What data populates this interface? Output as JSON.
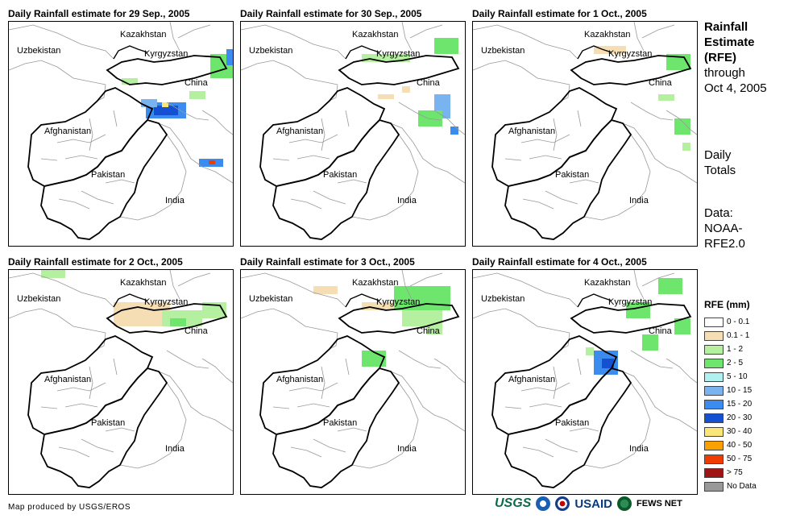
{
  "panels": [
    {
      "title": "Daily Rainfall estimate for 29 Sep., 2005"
    },
    {
      "title": "Daily Rainfall estimate for 30 Sep., 2005"
    },
    {
      "title": "Daily Rainfall estimate for 1 Oct., 2005"
    },
    {
      "title": "Daily Rainfall estimate for 2 Oct., 2005"
    },
    {
      "title": "Daily Rainfall estimate for 3 Oct., 2005"
    },
    {
      "title": "Daily Rainfall estimate for 4 Oct., 2005"
    }
  ],
  "map_labels": {
    "kazakhstan": "Kazakhstan",
    "uzbekistan": "Uzbekistan",
    "kyrgyzstan": "Kyrgyzstan",
    "china": "China",
    "afghanistan": "Afghanistan",
    "pakistan": "Pakistan",
    "india": "India"
  },
  "sidebar": {
    "title_line1": "Rainfall",
    "title_line2": "Estimate",
    "title_line3": "(RFE)",
    "through": "through",
    "date": "Oct 4, 2005",
    "totals_line1": "Daily",
    "totals_line2": "Totals",
    "data_line1": "Data:",
    "data_line2": "NOAA-",
    "data_line3": "RFE2.0"
  },
  "legend": {
    "title": "RFE (mm)",
    "items": [
      {
        "label": "0 - 0.1",
        "color": "#ffffff"
      },
      {
        "label": "0.1 - 1",
        "color": "#f5deb3"
      },
      {
        "label": "1 - 2",
        "color": "#b4f0a0"
      },
      {
        "label": "2 - 5",
        "color": "#6ee66e"
      },
      {
        "label": "5 - 10",
        "color": "#b0f0f0"
      },
      {
        "label": "10 - 15",
        "color": "#7ab4f0"
      },
      {
        "label": "15 - 20",
        "color": "#3c8cf0"
      },
      {
        "label": "20 - 30",
        "color": "#1450d2"
      },
      {
        "label": "30 - 40",
        "color": "#fae678"
      },
      {
        "label": "40 - 50",
        "color": "#faa000"
      },
      {
        "label": "50 - 75",
        "color": "#f03c00"
      },
      {
        "label": "> 75",
        "color": "#a01414"
      },
      {
        "label": "No Data",
        "color": "#999999"
      }
    ]
  },
  "footer": {
    "credit": "Map produced by USGS/EROS",
    "logo_usgs": "USGS",
    "logo_usaid": "USAID",
    "logo_fews": "FEWS NET"
  }
}
